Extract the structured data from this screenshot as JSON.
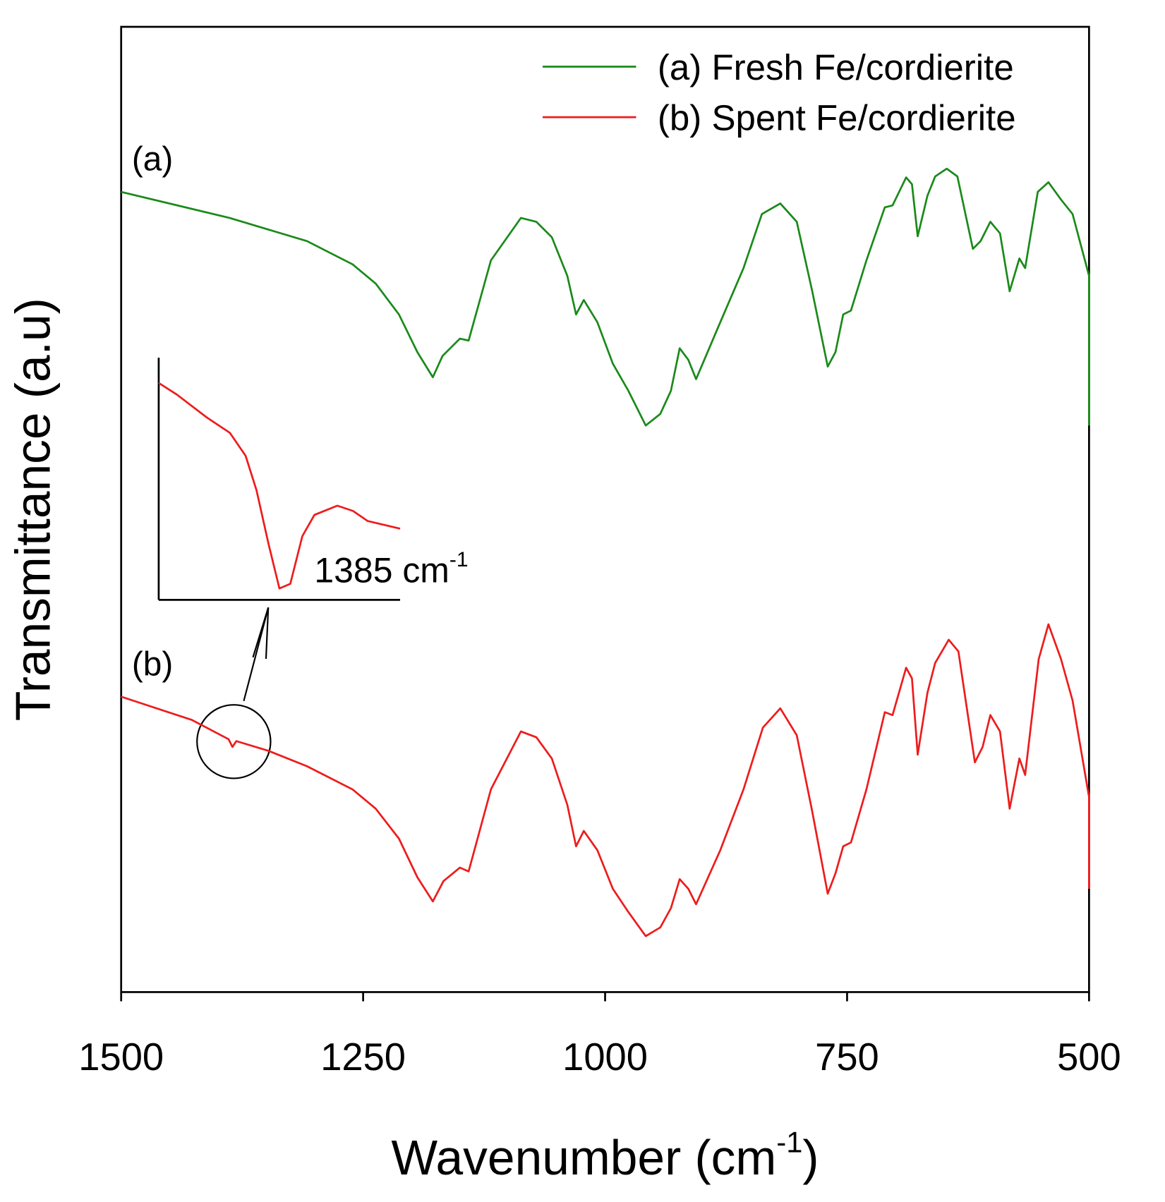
{
  "chart_data": [
    {
      "type": "line",
      "x_label": {
        "text": "Wavenumber (cm",
        "superscript": "-1",
        "suffix": ")"
      },
      "y_label": "Transmittance (a.u)",
      "xlim": [
        1500,
        500
      ],
      "ylim": [
        0,
        100
      ],
      "xticks": [
        1500,
        1250,
        1000,
        750,
        500
      ],
      "legend": "upper right",
      "series": [
        {
          "name": "(a) Fresh Fe/cordierite",
          "label": "(a)",
          "color": "#1a8a1a",
          "x": [
            1500,
            1388,
            1308,
            1261,
            1237,
            1213,
            1194,
            1178,
            1168,
            1150,
            1141,
            1118,
            1087,
            1071,
            1055,
            1039,
            1030,
            1022,
            1008,
            992,
            976,
            958,
            943,
            932,
            923,
            914,
            906,
            881,
            857,
            838,
            819,
            802,
            786,
            770,
            762,
            754,
            746,
            730,
            711,
            703,
            689,
            683,
            677,
            667,
            659,
            647,
            636,
            620,
            612,
            602,
            592,
            582,
            572,
            566,
            553,
            542,
            529,
            517,
            500,
            500
          ],
          "values": [
            82.9,
            80.2,
            77.8,
            75.4,
            73.4,
            70.2,
            66.3,
            63.7,
            65.9,
            67.7,
            67.5,
            75.8,
            80.2,
            79.8,
            78.2,
            74.2,
            70.2,
            71.7,
            69.4,
            65.1,
            62.3,
            58.7,
            59.9,
            62.3,
            66.7,
            65.5,
            63.5,
            69.4,
            75.0,
            80.6,
            81.7,
            79.8,
            72.6,
            64.8,
            66.3,
            70.2,
            70.6,
            75.8,
            81.3,
            81.5,
            84.4,
            83.7,
            78.3,
            82.5,
            84.5,
            85.3,
            84.5,
            77.0,
            77.8,
            79.8,
            78.6,
            72.6,
            76.0,
            75.0,
            82.9,
            83.9,
            82.1,
            80.6,
            74.2,
            58.7
          ]
        },
        {
          "name": "(b) Spent Fe/cordierite",
          "label": "(b)",
          "color": "#ee1c1c",
          "x": [
            1500,
            1427,
            1389,
            1385,
            1381,
            1348,
            1308,
            1261,
            1237,
            1213,
            1194,
            1178,
            1167,
            1150,
            1141,
            1118,
            1087,
            1071,
            1055,
            1039,
            1030,
            1022,
            1008,
            992,
            976,
            958,
            943,
            932,
            923,
            914,
            906,
            881,
            857,
            837,
            819,
            802,
            786,
            770,
            762,
            754,
            746,
            730,
            711,
            703,
            689,
            683,
            677,
            667,
            659,
            645,
            635,
            618,
            610,
            602,
            592,
            582,
            572,
            566,
            552,
            542,
            529,
            517,
            500,
            500
          ],
          "values": [
            30.6,
            28.2,
            26.2,
            25.4,
            26.0,
            25.0,
            23.4,
            21.0,
            19.0,
            15.9,
            11.9,
            9.4,
            11.5,
            12.9,
            12.5,
            21.0,
            27.0,
            26.4,
            24.2,
            19.4,
            15.1,
            16.7,
            14.7,
            10.7,
            8.3,
            5.8,
            6.7,
            8.7,
            11.7,
            10.7,
            9.1,
            14.7,
            21.0,
            27.4,
            29.4,
            26.6,
            18.7,
            10.2,
            12.3,
            15.1,
            15.5,
            21.0,
            29.0,
            28.7,
            33.6,
            32.5,
            24.6,
            31.0,
            34.1,
            36.5,
            35.3,
            23.8,
            25.4,
            28.7,
            27.0,
            19.0,
            24.2,
            22.5,
            34.5,
            38.1,
            34.5,
            30.2,
            20.2,
            10.7
          ]
        }
      ]
    },
    {
      "type": "line",
      "xlim": [
        1395,
        1375
      ],
      "ylim": [
        0,
        100
      ],
      "annotation": {
        "text": "1385 cm",
        "superscript": "-1"
      },
      "series": [
        {
          "color": "#ee1c1c",
          "x": [
            1395,
            1393.5,
            1391,
            1389.1,
            1387.8,
            1386.9,
            1385.9,
            1385.0,
            1384.1,
            1383.1,
            1382.1,
            1380.2,
            1378.9,
            1377.7,
            1375
          ],
          "values": [
            89.6,
            84.8,
            75.3,
            69.0,
            59.5,
            45.3,
            23.1,
            4.7,
            6.6,
            26.3,
            35.1,
            38.9,
            36.7,
            32.6,
            29.4
          ]
        }
      ]
    }
  ]
}
